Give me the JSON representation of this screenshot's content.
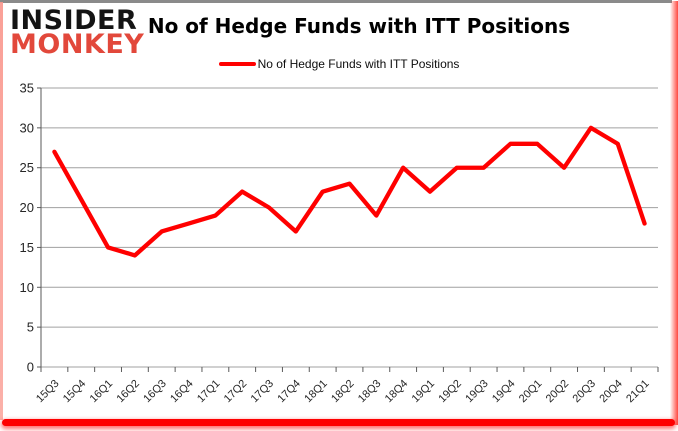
{
  "logo": {
    "line1": "INSIDER",
    "line2": "MONKEY"
  },
  "header": {
    "title": "No of Hedge Funds with ITT Positions"
  },
  "legend": {
    "label": "No of Hedge Funds with ITT Positions"
  },
  "colors": {
    "line": "#ff0000",
    "grid": "#a0a0a0",
    "axis": "#5a5a5a",
    "tick_label": "#262626",
    "logo_black": "#141414",
    "logo_red": "#e2483b",
    "frame_red": "#fe0000",
    "frame_gray": "#8a8a8a"
  },
  "chart_data": {
    "type": "line",
    "title": "No of Hedge Funds with ITT Positions",
    "categories": [
      "15Q3",
      "15Q4",
      "16Q1",
      "16Q2",
      "16Q3",
      "16Q4",
      "17Q1",
      "17Q2",
      "17Q3",
      "17Q4",
      "18Q1",
      "18Q2",
      "18Q3",
      "18Q4",
      "19Q1",
      "19Q2",
      "19Q3",
      "19Q4",
      "20Q1",
      "20Q2",
      "20Q3",
      "20Q4",
      "21Q1"
    ],
    "series": [
      {
        "name": "No of Hedge Funds with ITT Positions",
        "values": [
          27,
          21,
          15,
          14,
          17,
          18,
          19,
          22,
          20,
          17,
          22,
          23,
          19,
          25,
          22,
          25,
          25,
          28,
          28,
          25,
          30,
          28,
          18
        ]
      }
    ],
    "xlabel": "",
    "ylabel": "",
    "ylim": [
      0,
      35
    ],
    "yticks": [
      0,
      5,
      10,
      15,
      20,
      25,
      30,
      35
    ],
    "grid": true,
    "legend_position": "top"
  }
}
